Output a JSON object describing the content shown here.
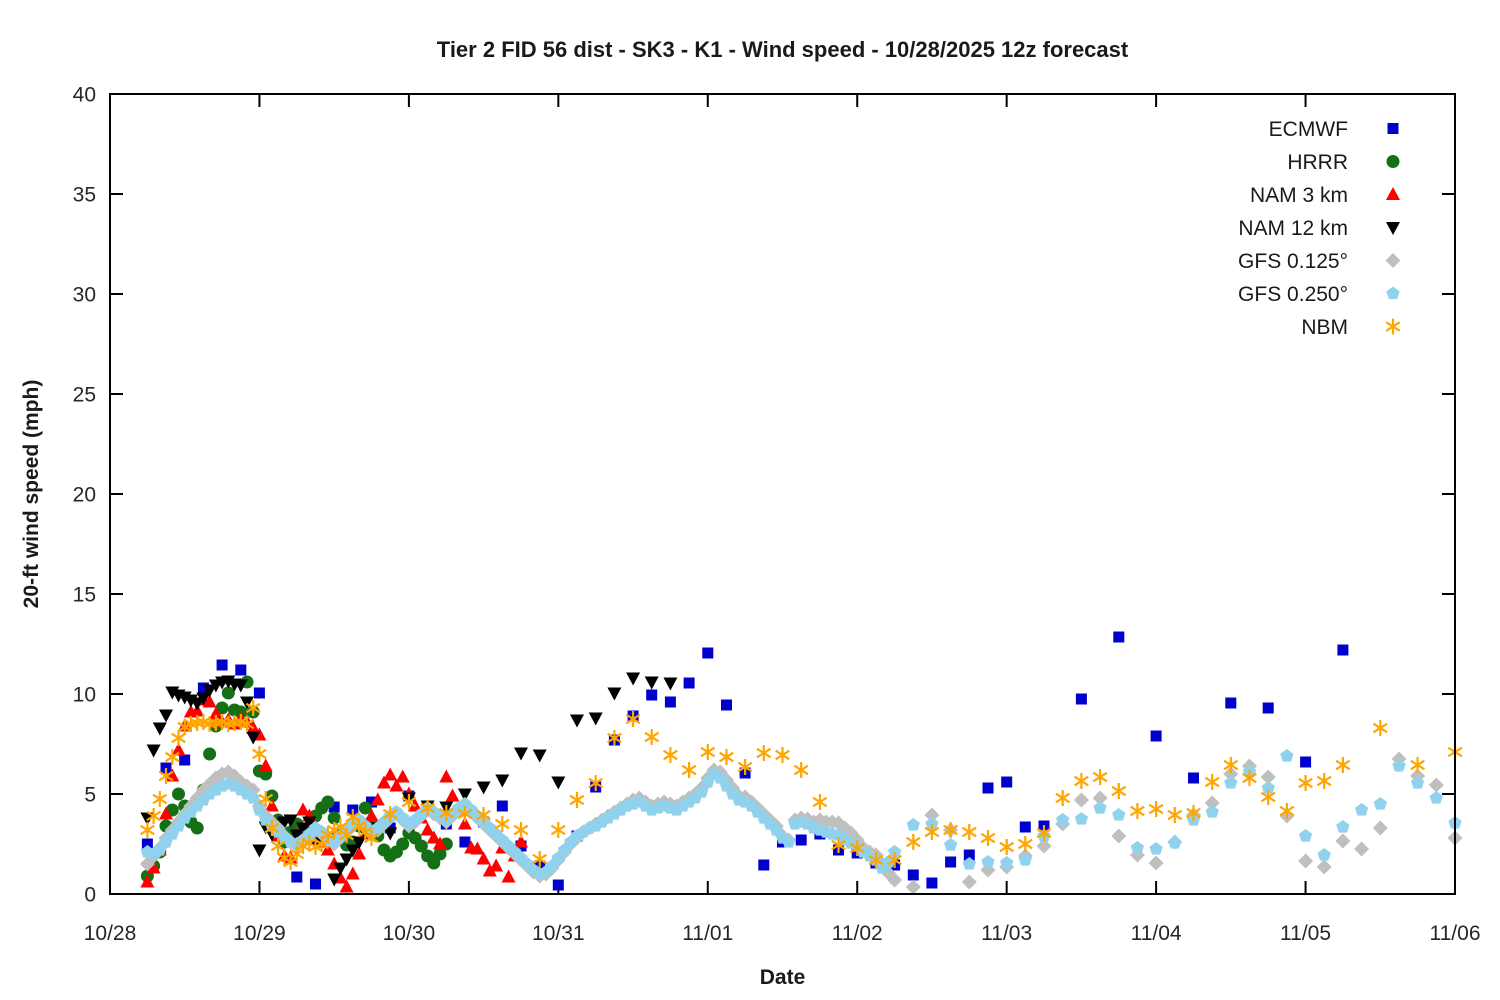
{
  "page": {
    "background": "#ffffff"
  },
  "chart_data": {
    "type": "scatter",
    "title": "Tier 2 FID 56 dist - SK3 - K1 - Wind speed - 10/28/2025 12z forecast",
    "xlabel": "Date",
    "ylabel": "20-ft wind speed (mph)",
    "x_ticks": [
      "10/28",
      "10/29",
      "10/30",
      "10/31",
      "11/01",
      "11/02",
      "11/03",
      "11/04",
      "11/05",
      "11/06"
    ],
    "x_days": 9,
    "ylim": [
      0,
      40
    ],
    "y_tick_step": 5,
    "grid": false,
    "legend_position": "top-right-inside",
    "axis_color": "#000000",
    "text_color": "#262626",
    "series": [
      {
        "name": "ECMWF",
        "marker": "square",
        "color": "#0000cc",
        "segments": [
          {
            "start_day": 0.25,
            "step_day": 0.125,
            "values": [
              2.5,
              6.3,
              6.7,
              10.3,
              11.45,
              11.2,
              10.05,
              3.6,
              0.85,
              0.5,
              4.35,
              4.2,
              4.6,
              3.3,
              4.9,
              4.3,
              3.5,
              2.6,
              3.6,
              4.4,
              2.4,
              1.4,
              0.45,
              2.9,
              5.35,
              7.7,
              8.9,
              9.95,
              9.6,
              10.55,
              12.05,
              9.45,
              6.05,
              1.45,
              2.6,
              2.7,
              3.0,
              2.2,
              2.05,
              1.55,
              1.45,
              0.95,
              0.55,
              1.6,
              1.95,
              5.3,
              5.6,
              3.35,
              3.4
            ]
          },
          {
            "start_day": 6.5,
            "step_day": 0.25,
            "values": [
              9.75,
              12.85,
              7.9,
              5.8,
              9.55,
              9.3,
              6.6,
              12.2
            ]
          }
        ]
      },
      {
        "name": "HRRR",
        "marker": "circle",
        "color": "#157015",
        "segments": [
          {
            "start_day": 0.25,
            "step_day": 0.0416667,
            "values": [
              0.9,
              1.4,
              2.1,
              3.4,
              4.2,
              5.0,
              4.4,
              3.6,
              3.3,
              5.2,
              7.0,
              8.4,
              9.3,
              10.05,
              9.2,
              9.1,
              10.6,
              9.1,
              6.15,
              6.0,
              4.9,
              3.7,
              2.6,
              3.1,
              3.5,
              2.7,
              3.3,
              3.9,
              4.3,
              4.6,
              3.8,
              3.0,
              2.45,
              2.6,
              3.4,
              4.3,
              3.6,
              2.9,
              2.2,
              1.9,
              2.1,
              2.5,
              3.05,
              2.8,
              2.4,
              1.9,
              1.55,
              2.0,
              2.5
            ]
          }
        ]
      },
      {
        "name": "NAM 3 km",
        "marker": "triangle-up",
        "color": "#ff0000",
        "segments": [
          {
            "start_day": 0.25,
            "step_day": 0.0416667,
            "values": [
              0.6,
              1.3,
              2.2,
              4.0,
              5.9,
              7.2,
              8.4,
              9.1,
              9.15,
              9.7,
              9.6,
              9.0,
              8.6,
              8.7,
              8.5,
              8.75,
              8.6,
              8.3,
              7.95,
              6.4,
              4.4,
              2.9,
              1.9,
              1.8,
              2.95,
              4.2,
              3.9,
              3.1,
              2.6,
              2.2,
              1.5,
              0.8,
              0.35,
              1.0,
              2.0,
              3.0,
              3.9,
              4.7,
              5.55,
              5.95,
              5.4,
              5.85,
              5.0,
              4.4,
              3.8,
              3.2,
              2.8,
              2.5,
              5.85,
              4.9,
              4.2,
              3.5,
              2.3,
              2.25,
              1.75,
              1.15,
              1.4,
              2.3,
              0.85,
              1.9,
              2.6
            ]
          }
        ]
      },
      {
        "name": "NAM 12 km",
        "marker": "triangle-down",
        "color": "#000000",
        "segments": [
          {
            "start_day": 0.25,
            "step_day": 0.0416667,
            "values": [
              3.8,
              7.2,
              8.3,
              8.95,
              10.1,
              9.95,
              9.85,
              9.7,
              9.55,
              9.8,
              10.2,
              10.45,
              10.6,
              10.65,
              10.5,
              10.45,
              9.6,
              7.85,
              2.2,
              3.35,
              3.0,
              3.5,
              3.6,
              3.7,
              2.95,
              3.3,
              3.6,
              2.55,
              2.8,
              2.85,
              0.75,
              1.3,
              1.75,
              2.2,
              2.6,
              3.05,
              3.3
            ]
          },
          {
            "start_day": 1.875,
            "step_day": 0.125,
            "values": [
              3.05,
              4.8,
              4.4,
              4.35,
              5.0,
              5.35,
              5.7,
              7.05,
              6.95,
              5.6,
              8.7,
              8.8,
              10.05,
              10.8,
              10.6,
              10.55
            ]
          }
        ]
      },
      {
        "name": "GFS 0.125°",
        "marker": "diamond",
        "color": "#bfbfbf",
        "segments": [
          {
            "start_day": 0.25,
            "step_day": 0.0416667,
            "values": [
              1.5,
              1.9,
              2.3,
              2.8,
              3.2,
              3.6,
              4.0,
              4.4,
              4.8,
              5.2,
              5.5,
              5.8,
              6.0,
              6.1,
              5.9,
              5.6,
              5.4,
              5.2,
              4.4,
              3.9,
              3.6,
              3.3,
              2.9,
              2.6,
              2.4,
              2.6,
              2.9,
              3.2,
              3.0,
              2.7,
              2.5,
              2.8,
              3.1,
              3.4,
              3.6,
              3.3,
              3.0,
              3.2,
              3.5,
              3.8,
              4.0,
              3.7,
              3.4,
              3.6,
              3.9,
              4.2,
              4.0,
              3.8,
              3.6,
              3.9,
              4.2,
              4.4,
              4.1,
              3.8,
              3.5,
              3.2,
              2.9,
              2.6,
              2.3,
              2.0,
              1.7,
              1.4,
              1.1,
              0.9,
              1.0,
              1.3,
              1.7,
              2.1,
              2.5,
              2.8,
              3.1,
              3.3,
              3.5,
              3.7,
              3.9,
              4.1,
              4.3,
              4.5,
              4.7,
              4.8,
              4.6,
              4.4,
              4.5,
              4.6,
              4.5,
              4.4,
              4.6,
              4.8,
              5.0,
              5.3,
              5.8,
              6.2,
              6.1,
              5.7,
              5.3,
              4.9,
              4.85,
              4.6,
              4.3,
              4.0,
              3.7,
              3.4,
              2.9,
              2.7,
              3.7,
              3.8,
              3.75,
              3.6,
              3.7,
              3.6,
              3.6,
              3.55,
              3.3,
              3.05,
              2.7,
              2.3,
              2.1,
              1.95,
              1.5,
              1.05,
              0.7
            ]
          },
          {
            "start_day": 5.375,
            "step_day": 0.125,
            "values": [
              0.35,
              3.95,
              3.2,
              0.6,
              1.2,
              1.35,
              1.9,
              2.4,
              3.5,
              4.7,
              4.8,
              2.9,
              1.95,
              1.55,
              2.6,
              3.95,
              4.55,
              6.0,
              6.4,
              5.85,
              3.9,
              1.65,
              1.35,
              2.65,
              2.25,
              3.3,
              6.75,
              5.9,
              5.45,
              2.8
            ]
          }
        ]
      },
      {
        "name": "GFS 0.250°",
        "marker": "pentagon",
        "color": "#90d2ee",
        "segments": [
          {
            "start_day": 0.25,
            "step_day": 0.0416667,
            "values": [
              2.1,
              2.0,
              2.2,
              2.6,
              3.0,
              3.4,
              3.8,
              4.1,
              4.4,
              4.7,
              5.0,
              5.2,
              5.4,
              5.5,
              5.4,
              5.2,
              5.0,
              4.8,
              4.2,
              3.7,
              3.4,
              3.1,
              2.8,
              2.6,
              2.5,
              2.7,
              3.0,
              3.3,
              3.1,
              2.8,
              2.6,
              2.9,
              3.2,
              3.5,
              3.7,
              3.4,
              3.1,
              3.3,
              3.6,
              3.9,
              4.1,
              3.8,
              3.5,
              3.7,
              4.0,
              4.3,
              4.1,
              3.9,
              3.7,
              4.0,
              4.3,
              4.5,
              4.2,
              3.9,
              3.6,
              3.3,
              3.0,
              2.7,
              2.4,
              2.1,
              1.8,
              1.5,
              1.2,
              1.0,
              1.1,
              1.4,
              1.8,
              2.2,
              2.6,
              2.9,
              3.1,
              3.3,
              3.4,
              3.6,
              3.8,
              4.0,
              4.2,
              4.4,
              4.5,
              4.6,
              4.4,
              4.2,
              4.3,
              4.4,
              4.3,
              4.2,
              4.4,
              4.6,
              4.8,
              5.1,
              5.6,
              6.0,
              5.8,
              5.4,
              5.0,
              4.7,
              4.6,
              4.4,
              4.1,
              3.8,
              3.5,
              3.2,
              2.8,
              2.6,
              3.5,
              3.6,
              3.5,
              3.3,
              3.2,
              3.1,
              3.0,
              2.95,
              2.7,
              2.55,
              2.4,
              2.1,
              1.9,
              1.7,
              1.3,
              1.6,
              2.1
            ]
          },
          {
            "start_day": 5.375,
            "step_day": 0.125,
            "values": [
              3.45,
              3.5,
              2.45,
              1.5,
              1.6,
              1.55,
              1.7,
              2.9,
              3.7,
              3.75,
              4.3,
              3.95,
              2.3,
              2.25,
              2.55,
              3.7,
              4.1,
              5.55,
              6.1,
              5.3,
              6.9,
              2.9,
              1.95,
              3.35,
              4.2,
              4.5,
              6.4,
              5.55,
              4.8,
              3.55
            ]
          }
        ]
      },
      {
        "name": "NBM",
        "marker": "asterisk",
        "color": "#ffa500",
        "segments": [
          {
            "start_day": 0.25,
            "step_day": 0.0416667,
            "values": [
              3.2,
              3.9,
              4.75,
              5.9,
              6.85,
              7.8,
              8.35,
              8.5,
              8.55,
              8.6,
              8.5,
              8.55,
              8.6,
              8.5,
              8.55,
              8.6,
              8.5,
              9.3,
              7.0,
              4.75,
              3.3,
              2.4,
              1.8,
              1.6,
              2.0,
              2.4,
              2.55,
              2.35,
              2.5,
              2.95,
              3.2,
              3.35,
              2.95,
              3.85,
              3.4,
              3.1,
              2.8
            ]
          },
          {
            "start_day": 1.875,
            "step_day": 0.125,
            "values": [
              4.0,
              4.6,
              4.3,
              4.05,
              4.0,
              3.95,
              3.5,
              3.2,
              1.75,
              3.2,
              4.7,
              5.55,
              7.8,
              8.75,
              7.85,
              6.95,
              6.2,
              7.1,
              6.85,
              6.35,
              7.05,
              6.95,
              6.2,
              4.6,
              2.45,
              2.3,
              1.7,
              1.7,
              2.6,
              3.1,
              3.2,
              3.1,
              2.8,
              2.35,
              2.5
            ]
          },
          {
            "start_day": 6.25,
            "step_day": 0.125,
            "values": [
              3.05,
              4.8,
              5.65,
              5.85,
              5.15,
              4.15,
              4.25,
              3.95,
              4.05,
              5.6,
              6.45,
              5.8,
              4.85,
              4.15,
              5.55
            ]
          }
        ],
        "points": [
          [
            8.125,
            5.65
          ],
          [
            8.25,
            6.45
          ],
          [
            8.5,
            8.3
          ],
          [
            8.75,
            6.45
          ],
          [
            9.0,
            7.1
          ]
        ]
      }
    ]
  }
}
